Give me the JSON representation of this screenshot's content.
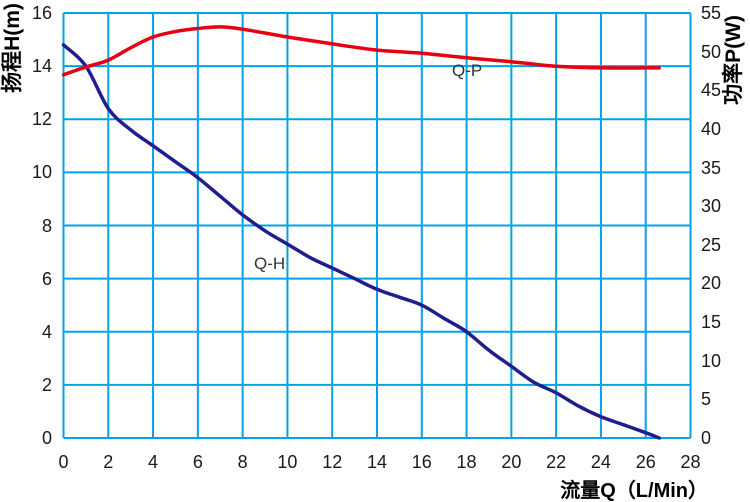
{
  "chart_data": {
    "type": "line",
    "title": "",
    "xlabel": "流量Q（L/Min）",
    "ylabel_left": "扬程H(m)",
    "ylabel_right": "功率P(W)",
    "x_axis": {
      "min": 0,
      "max": 28,
      "tick_step": 2,
      "ticks": [
        0,
        2,
        4,
        6,
        8,
        10,
        12,
        14,
        16,
        18,
        20,
        22,
        24,
        26,
        28
      ]
    },
    "y_left": {
      "min": 0,
      "max": 16,
      "tick_step": 2,
      "ticks": [
        16,
        14,
        12,
        10,
        8,
        6,
        4,
        2,
        0
      ]
    },
    "y_right": {
      "min": 0,
      "max": 55,
      "tick_step": 5,
      "ticks": [
        55,
        50,
        45,
        40,
        35,
        30,
        25,
        20,
        15,
        10,
        5,
        0
      ]
    },
    "grid": {
      "on": true,
      "color": "#00A2E8"
    },
    "legend_position": "inline-labels",
    "series": [
      {
        "name": "Q-H",
        "axis": "left",
        "color": "#1E1E90",
        "points": [
          [
            0,
            14.8
          ],
          [
            1,
            14.0
          ],
          [
            2,
            12.4
          ],
          [
            3,
            11.6
          ],
          [
            4,
            11.0
          ],
          [
            5,
            10.4
          ],
          [
            6,
            9.8
          ],
          [
            7,
            9.1
          ],
          [
            8,
            8.4
          ],
          [
            9,
            7.8
          ],
          [
            10,
            7.3
          ],
          [
            11,
            6.8
          ],
          [
            12,
            6.4
          ],
          [
            13,
            6.0
          ],
          [
            14,
            5.6
          ],
          [
            15,
            5.3
          ],
          [
            16,
            5.0
          ],
          [
            17,
            4.5
          ],
          [
            18,
            4.0
          ],
          [
            19,
            3.3
          ],
          [
            20,
            2.7
          ],
          [
            21,
            2.1
          ],
          [
            22,
            1.7
          ],
          [
            23,
            1.2
          ],
          [
            24,
            0.8
          ],
          [
            25,
            0.5
          ],
          [
            26,
            0.2
          ],
          [
            26.6,
            0
          ]
        ]
      },
      {
        "name": "Q-P",
        "axis": "right",
        "color": "#E60012",
        "points": [
          [
            0,
            47.0
          ],
          [
            1,
            48.0
          ],
          [
            2,
            48.9
          ],
          [
            3,
            50.5
          ],
          [
            4,
            51.9
          ],
          [
            5,
            52.6
          ],
          [
            6,
            53.0
          ],
          [
            7,
            53.2
          ],
          [
            8,
            52.9
          ],
          [
            10,
            51.9
          ],
          [
            12,
            51.0
          ],
          [
            14,
            50.2
          ],
          [
            16,
            49.8
          ],
          [
            18,
            49.2
          ],
          [
            20,
            48.7
          ],
          [
            22,
            48.1
          ],
          [
            24,
            47.9
          ],
          [
            26.6,
            47.9
          ]
        ]
      }
    ]
  },
  "labels": {
    "curve_qh": "Q-H",
    "curve_qp": "Q-P"
  },
  "colors": {
    "grid": "#00A2E8",
    "qh_curve": "#1E1E90",
    "qp_curve": "#E60012",
    "tick_text": "#1a1a1a"
  }
}
